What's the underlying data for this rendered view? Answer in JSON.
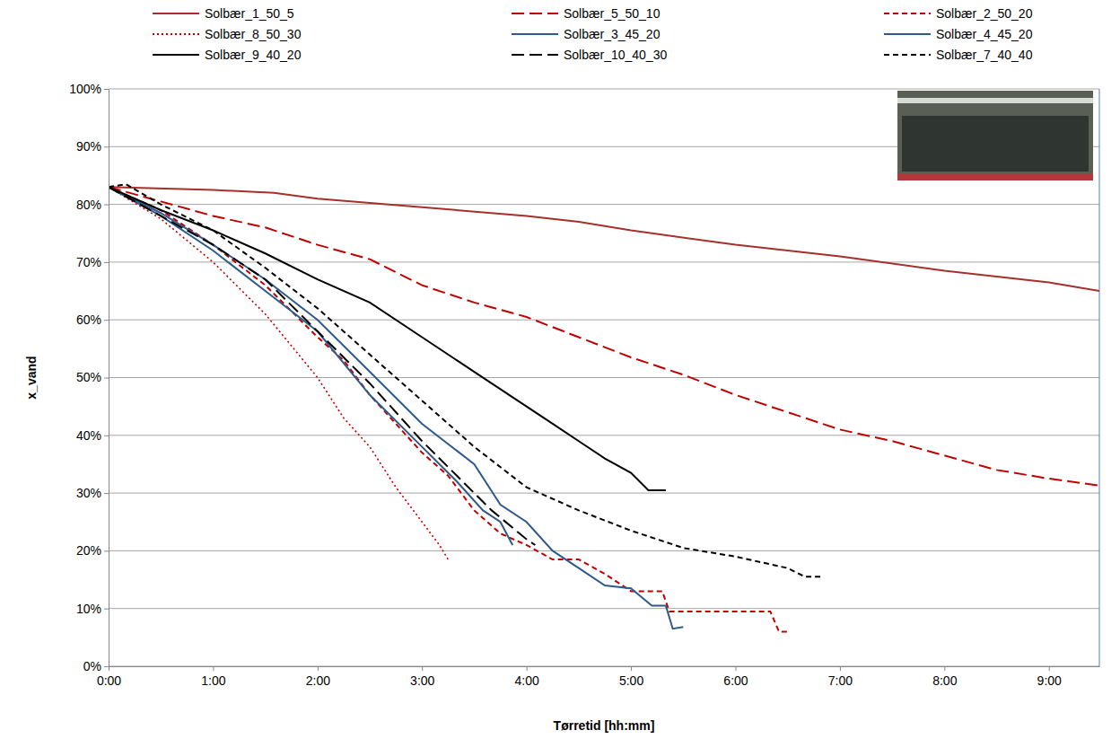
{
  "chart_data": {
    "type": "line",
    "x_label": "Tørretid [hh:mm]",
    "y_label": "x_vand",
    "xlim": [
      0,
      569
    ],
    "ylim": [
      0,
      100
    ],
    "xticks": [
      {
        "value": 0,
        "label": "0:00"
      },
      {
        "value": 60,
        "label": "1:00"
      },
      {
        "value": 120,
        "label": "2:00"
      },
      {
        "value": 180,
        "label": "3:00"
      },
      {
        "value": 240,
        "label": "4:00"
      },
      {
        "value": 300,
        "label": "5:00"
      },
      {
        "value": 360,
        "label": "6:00"
      },
      {
        "value": 420,
        "label": "7:00"
      },
      {
        "value": 480,
        "label": "8:00"
      },
      {
        "value": 540,
        "label": "9:00"
      }
    ],
    "yticks": [
      {
        "value": 0,
        "label": "0%"
      },
      {
        "value": 10,
        "label": "10%"
      },
      {
        "value": 20,
        "label": "20%"
      },
      {
        "value": 30,
        "label": "30%"
      },
      {
        "value": 40,
        "label": "40%"
      },
      {
        "value": 50,
        "label": "50%"
      },
      {
        "value": 60,
        "label": "60%"
      },
      {
        "value": 70,
        "label": "70%"
      },
      {
        "value": 80,
        "label": "80%"
      },
      {
        "value": 90,
        "label": "90%"
      },
      {
        "value": 100,
        "label": "100%"
      }
    ],
    "grid": true,
    "legend": "top",
    "series": [
      {
        "name": "Solbær_1_50_5",
        "color": "#a5302c",
        "line_style": "solid",
        "x": [
          0,
          60,
          95,
          120,
          180,
          240,
          270,
          300,
          360,
          420,
          480,
          540,
          569
        ],
        "values": [
          83,
          82.5,
          82,
          81,
          79.5,
          78,
          77,
          75.5,
          73,
          71,
          68.5,
          66.5,
          65
        ]
      },
      {
        "name": "Solbær_5_50_10",
        "color": "#c00000",
        "line_style": "dashed",
        "x": [
          0,
          30,
          60,
          90,
          120,
          150,
          180,
          210,
          240,
          270,
          300,
          330,
          360,
          390,
          420,
          450,
          480,
          510,
          540,
          569
        ],
        "values": [
          83,
          80.5,
          78,
          76,
          73,
          70.5,
          66,
          63,
          60.5,
          57,
          53.5,
          50.5,
          47,
          44,
          41,
          39,
          36.5,
          34,
          32.5,
          31.3
        ]
      },
      {
        "name": "Solbær_2_50_20",
        "color": "#c00000",
        "line_style": "short-dash",
        "x": [
          0,
          30,
          60,
          90,
          120,
          135,
          150,
          165,
          180,
          195,
          210,
          225,
          240,
          255,
          270,
          285,
          300,
          318,
          322,
          380,
          385,
          390
        ],
        "values": [
          83,
          79,
          73,
          66,
          57,
          53,
          47,
          42,
          37,
          33,
          27,
          23,
          21,
          18.5,
          18.5,
          16,
          13,
          13,
          9.5,
          9.5,
          6,
          6
        ]
      },
      {
        "name": "Solbær_8_50_30",
        "color": "#c00000",
        "line_style": "dotted",
        "x": [
          0,
          30,
          60,
          90,
          120,
          135,
          150,
          165,
          180,
          190,
          195
        ],
        "values": [
          83,
          77.5,
          70,
          61,
          50,
          43,
          38,
          31,
          25,
          21,
          18.5
        ]
      },
      {
        "name": "Solbær_3_45_20",
        "color": "#2e5a8c",
        "line_style": "solid",
        "x": [
          0,
          30,
          60,
          90,
          120,
          150,
          180,
          200,
          215,
          225,
          232
        ],
        "values": [
          83,
          78,
          72,
          65,
          58,
          47,
          38,
          32,
          27,
          25,
          21
        ]
      },
      {
        "name": "Solbær_4_45_20",
        "color": "#2e5a8c",
        "line_style": "solid",
        "x": [
          0,
          30,
          60,
          90,
          120,
          150,
          180,
          210,
          225,
          240,
          255,
          270,
          285,
          300,
          312,
          320,
          324,
          330
        ],
        "values": [
          83,
          78.5,
          73,
          67,
          60,
          51,
          42,
          35,
          28,
          25,
          20,
          17,
          14,
          13.5,
          10.5,
          10.5,
          6.5,
          6.8
        ]
      },
      {
        "name": "Solbær_9_40_20",
        "color": "#000000",
        "line_style": "solid",
        "x": [
          0,
          30,
          60,
          90,
          120,
          150,
          180,
          210,
          240,
          255,
          270,
          285,
          300,
          310,
          320
        ],
        "values": [
          83,
          79,
          75.5,
          71.5,
          67,
          63,
          57,
          51,
          45,
          42,
          39,
          36,
          33.5,
          30.5,
          30.5
        ]
      },
      {
        "name": "Solbær_10_40_30",
        "color": "#000000",
        "line_style": "dashed",
        "x": [
          0,
          30,
          60,
          90,
          120,
          150,
          180,
          200,
          220,
          240,
          245
        ],
        "values": [
          83,
          78,
          73,
          67,
          58,
          49,
          39,
          33,
          27,
          22,
          21
        ]
      },
      {
        "name": "Solbær_7_40_40",
        "color": "#000000",
        "line_style": "short-dash",
        "x": [
          0,
          10,
          30,
          60,
          90,
          120,
          150,
          180,
          210,
          240,
          270,
          300,
          330,
          360,
          390,
          400,
          410
        ],
        "values": [
          83,
          83.5,
          80,
          75.5,
          69,
          62,
          54,
          46,
          38,
          31,
          27,
          23.5,
          20.5,
          19,
          17,
          15.5,
          15.5
        ]
      }
    ]
  }
}
